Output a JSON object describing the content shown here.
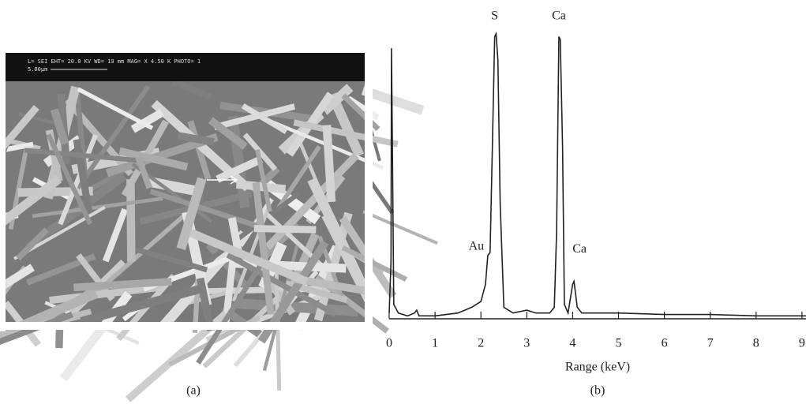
{
  "image_panel": {
    "info_text": "L= SEI    EHT= 20.0 KV  WD= 19  mm      MAG= X 4.50 K PHOTO= 1",
    "scale_text": "5.00µm",
    "caption": "(a)"
  },
  "chart_data": {
    "type": "line",
    "caption": "(b)",
    "xlabel": "Range (keV)",
    "x": [
      0.0,
      0.04,
      0.05,
      0.07,
      0.1,
      0.2,
      0.4,
      0.55,
      0.6,
      0.65,
      1.0,
      1.5,
      1.8,
      2.0,
      2.1,
      2.15,
      2.2,
      2.25,
      2.3,
      2.33,
      2.37,
      2.42,
      2.5,
      2.7,
      3.0,
      3.2,
      3.5,
      3.6,
      3.65,
      3.7,
      3.73,
      3.78,
      3.82,
      3.9,
      4.0,
      4.03,
      4.1,
      4.2,
      5.0,
      6.0,
      7.0,
      8.0,
      9.1
    ],
    "series": [
      {
        "color": "#222222",
        "values": [
          2,
          20,
          94,
          60,
          5,
          2,
          1,
          2,
          3,
          1,
          1,
          2,
          4,
          6,
          12,
          22,
          23,
          60,
          98,
          99,
          90,
          40,
          4,
          2,
          3,
          2,
          2,
          4,
          30,
          98,
          97,
          60,
          5,
          2,
          12,
          13,
          4,
          2,
          2,
          1.5,
          1.5,
          1,
          1
        ]
      }
    ],
    "annotations": [
      {
        "text": "S",
        "x": 2.3,
        "y": 105
      },
      {
        "text": "Ca",
        "x": 3.7,
        "y": 105
      },
      {
        "text": "Au",
        "x": 1.9,
        "y": 25
      },
      {
        "text": "Ca",
        "x": 4.15,
        "y": 24
      }
    ],
    "xlim": [
      0,
      9.1
    ],
    "ylim": [
      0,
      108
    ],
    "xticks": [
      0,
      1,
      2,
      3,
      4,
      5,
      6,
      7,
      8,
      9
    ]
  }
}
